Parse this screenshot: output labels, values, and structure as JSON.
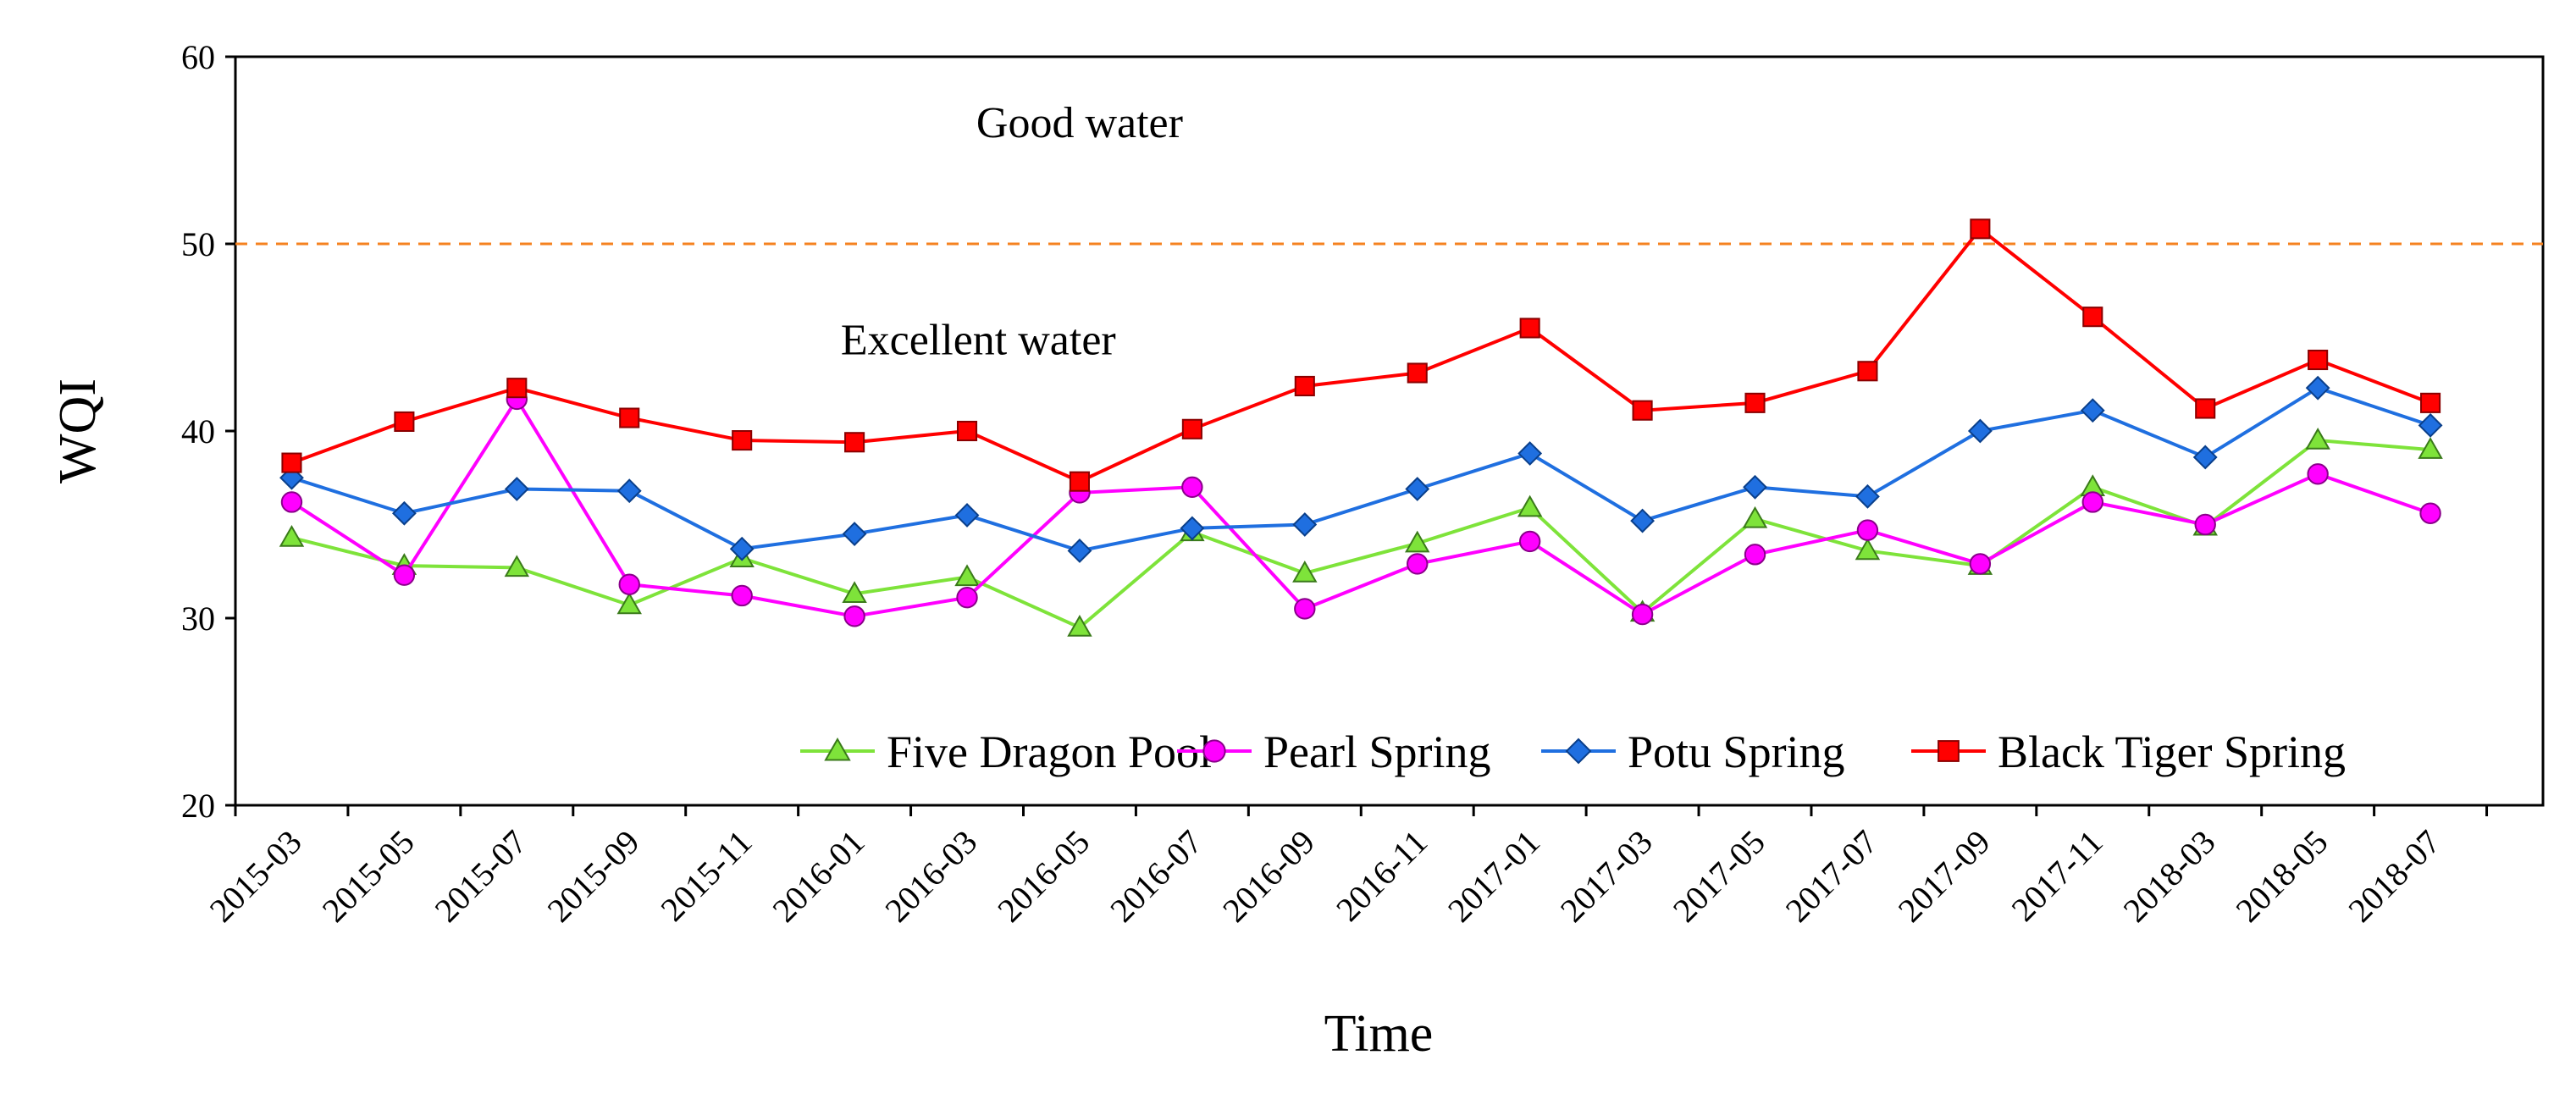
{
  "chart_data": {
    "type": "line",
    "title": "",
    "xlabel": "Time",
    "ylabel": "WQI",
    "ylim": [
      20,
      60
    ],
    "yticks": [
      20,
      30,
      40,
      50,
      60
    ],
    "categories": [
      "2015-03",
      "2015-05",
      "2015-07",
      "2015-09",
      "2015-11",
      "2016-01",
      "2016-03",
      "2016-05",
      "2016-07",
      "2016-09",
      "2016-11",
      "2017-01",
      "2017-03",
      "2017-05",
      "2017-07",
      "2017-09",
      "2017-11",
      "2018-03",
      "2018-05",
      "2018-07"
    ],
    "threshold": {
      "value": 50,
      "color": "#f58220",
      "style": "dashed"
    },
    "annotations": [
      {
        "text": "Good water",
        "at": {
          "category": 7,
          "y": 55.7
        }
      },
      {
        "text": "Excellent water",
        "at": {
          "category": 6.1,
          "y": 44.1
        }
      }
    ],
    "legend_position": "bottom-right",
    "series": [
      {
        "name": "Five Dragon Pool",
        "color": "#7ee33a",
        "line_color": "#7ee33a",
        "marker": "triangle",
        "values": [
          34.3,
          32.8,
          32.7,
          30.7,
          33.2,
          31.3,
          32.2,
          29.5,
          34.6,
          32.4,
          34.0,
          35.9,
          30.3,
          35.3,
          33.6,
          32.8,
          37.0,
          34.9,
          39.5,
          39.0
        ]
      },
      {
        "name": "Pearl Spring",
        "color": "#ff00ff",
        "line_color": "#ff00ff",
        "marker": "circle",
        "values": [
          36.2,
          32.3,
          41.7,
          31.8,
          31.2,
          30.1,
          31.1,
          36.7,
          37.0,
          30.5,
          32.9,
          34.1,
          30.2,
          33.4,
          34.7,
          32.9,
          36.2,
          35.0,
          37.7,
          35.6
        ]
      },
      {
        "name": "Potu Spring",
        "color": "#1f6fe0",
        "line_color": "#1f6fe0",
        "marker": "diamond",
        "values": [
          37.5,
          35.6,
          36.9,
          36.8,
          33.7,
          34.5,
          35.5,
          33.6,
          34.8,
          35.0,
          36.9,
          38.8,
          35.2,
          37.0,
          36.5,
          40.0,
          41.1,
          38.6,
          42.3,
          40.3
        ]
      },
      {
        "name": "Black Tiger Spring",
        "color": "#ff0000",
        "line_color": "#ff0000",
        "marker": "square",
        "values": [
          38.3,
          40.5,
          42.3,
          40.7,
          39.5,
          39.4,
          40.0,
          37.3,
          40.1,
          42.4,
          43.1,
          45.5,
          41.1,
          41.5,
          43.2,
          50.8,
          46.1,
          41.2,
          43.8,
          41.5
        ]
      }
    ]
  }
}
